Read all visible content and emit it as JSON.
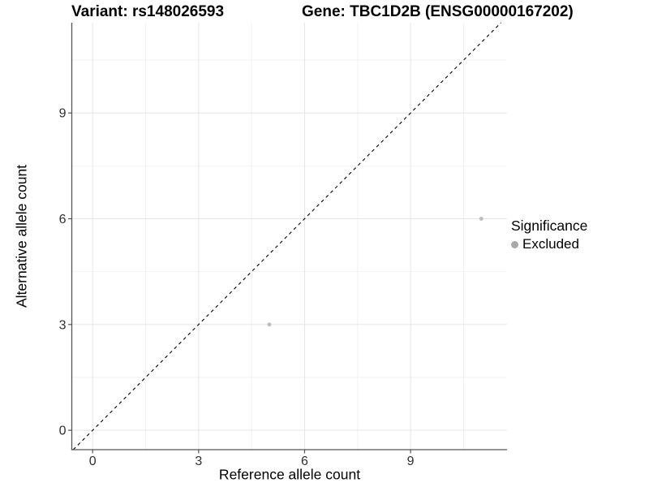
{
  "chart_data": {
    "type": "scatter",
    "titles": {
      "left": "Variant: rs148026593",
      "right": "Gene: TBC1D2B (ENSG00000167202)"
    },
    "xlabel": "Reference allele count",
    "ylabel": "Alternative allele count",
    "xlim": [
      -0.59,
      11.73
    ],
    "ylim": [
      -0.55,
      11.56
    ],
    "xticks": [
      0,
      3,
      6,
      9
    ],
    "yticks": [
      0,
      3,
      6,
      9
    ],
    "minor_ticks": [
      1.5,
      4.5,
      7.5,
      10.5
    ],
    "grid": true,
    "identity_line": {
      "style": "dashed",
      "color": "#000000",
      "slope": 1,
      "intercept": 0
    },
    "series": [
      {
        "name": "Excluded",
        "color": "#bcbcbc",
        "points": [
          [
            5,
            3
          ],
          [
            11,
            6
          ]
        ]
      }
    ],
    "legend": {
      "position": "right",
      "title": "Significance",
      "items": [
        {
          "label": "Excluded",
          "color": "#a8a8a8"
        }
      ]
    },
    "colors": {
      "axis": "#545454",
      "grid_major": "#e6e6e6",
      "grid_minor": "#f2f2f2",
      "tick_text": "#303030"
    }
  }
}
